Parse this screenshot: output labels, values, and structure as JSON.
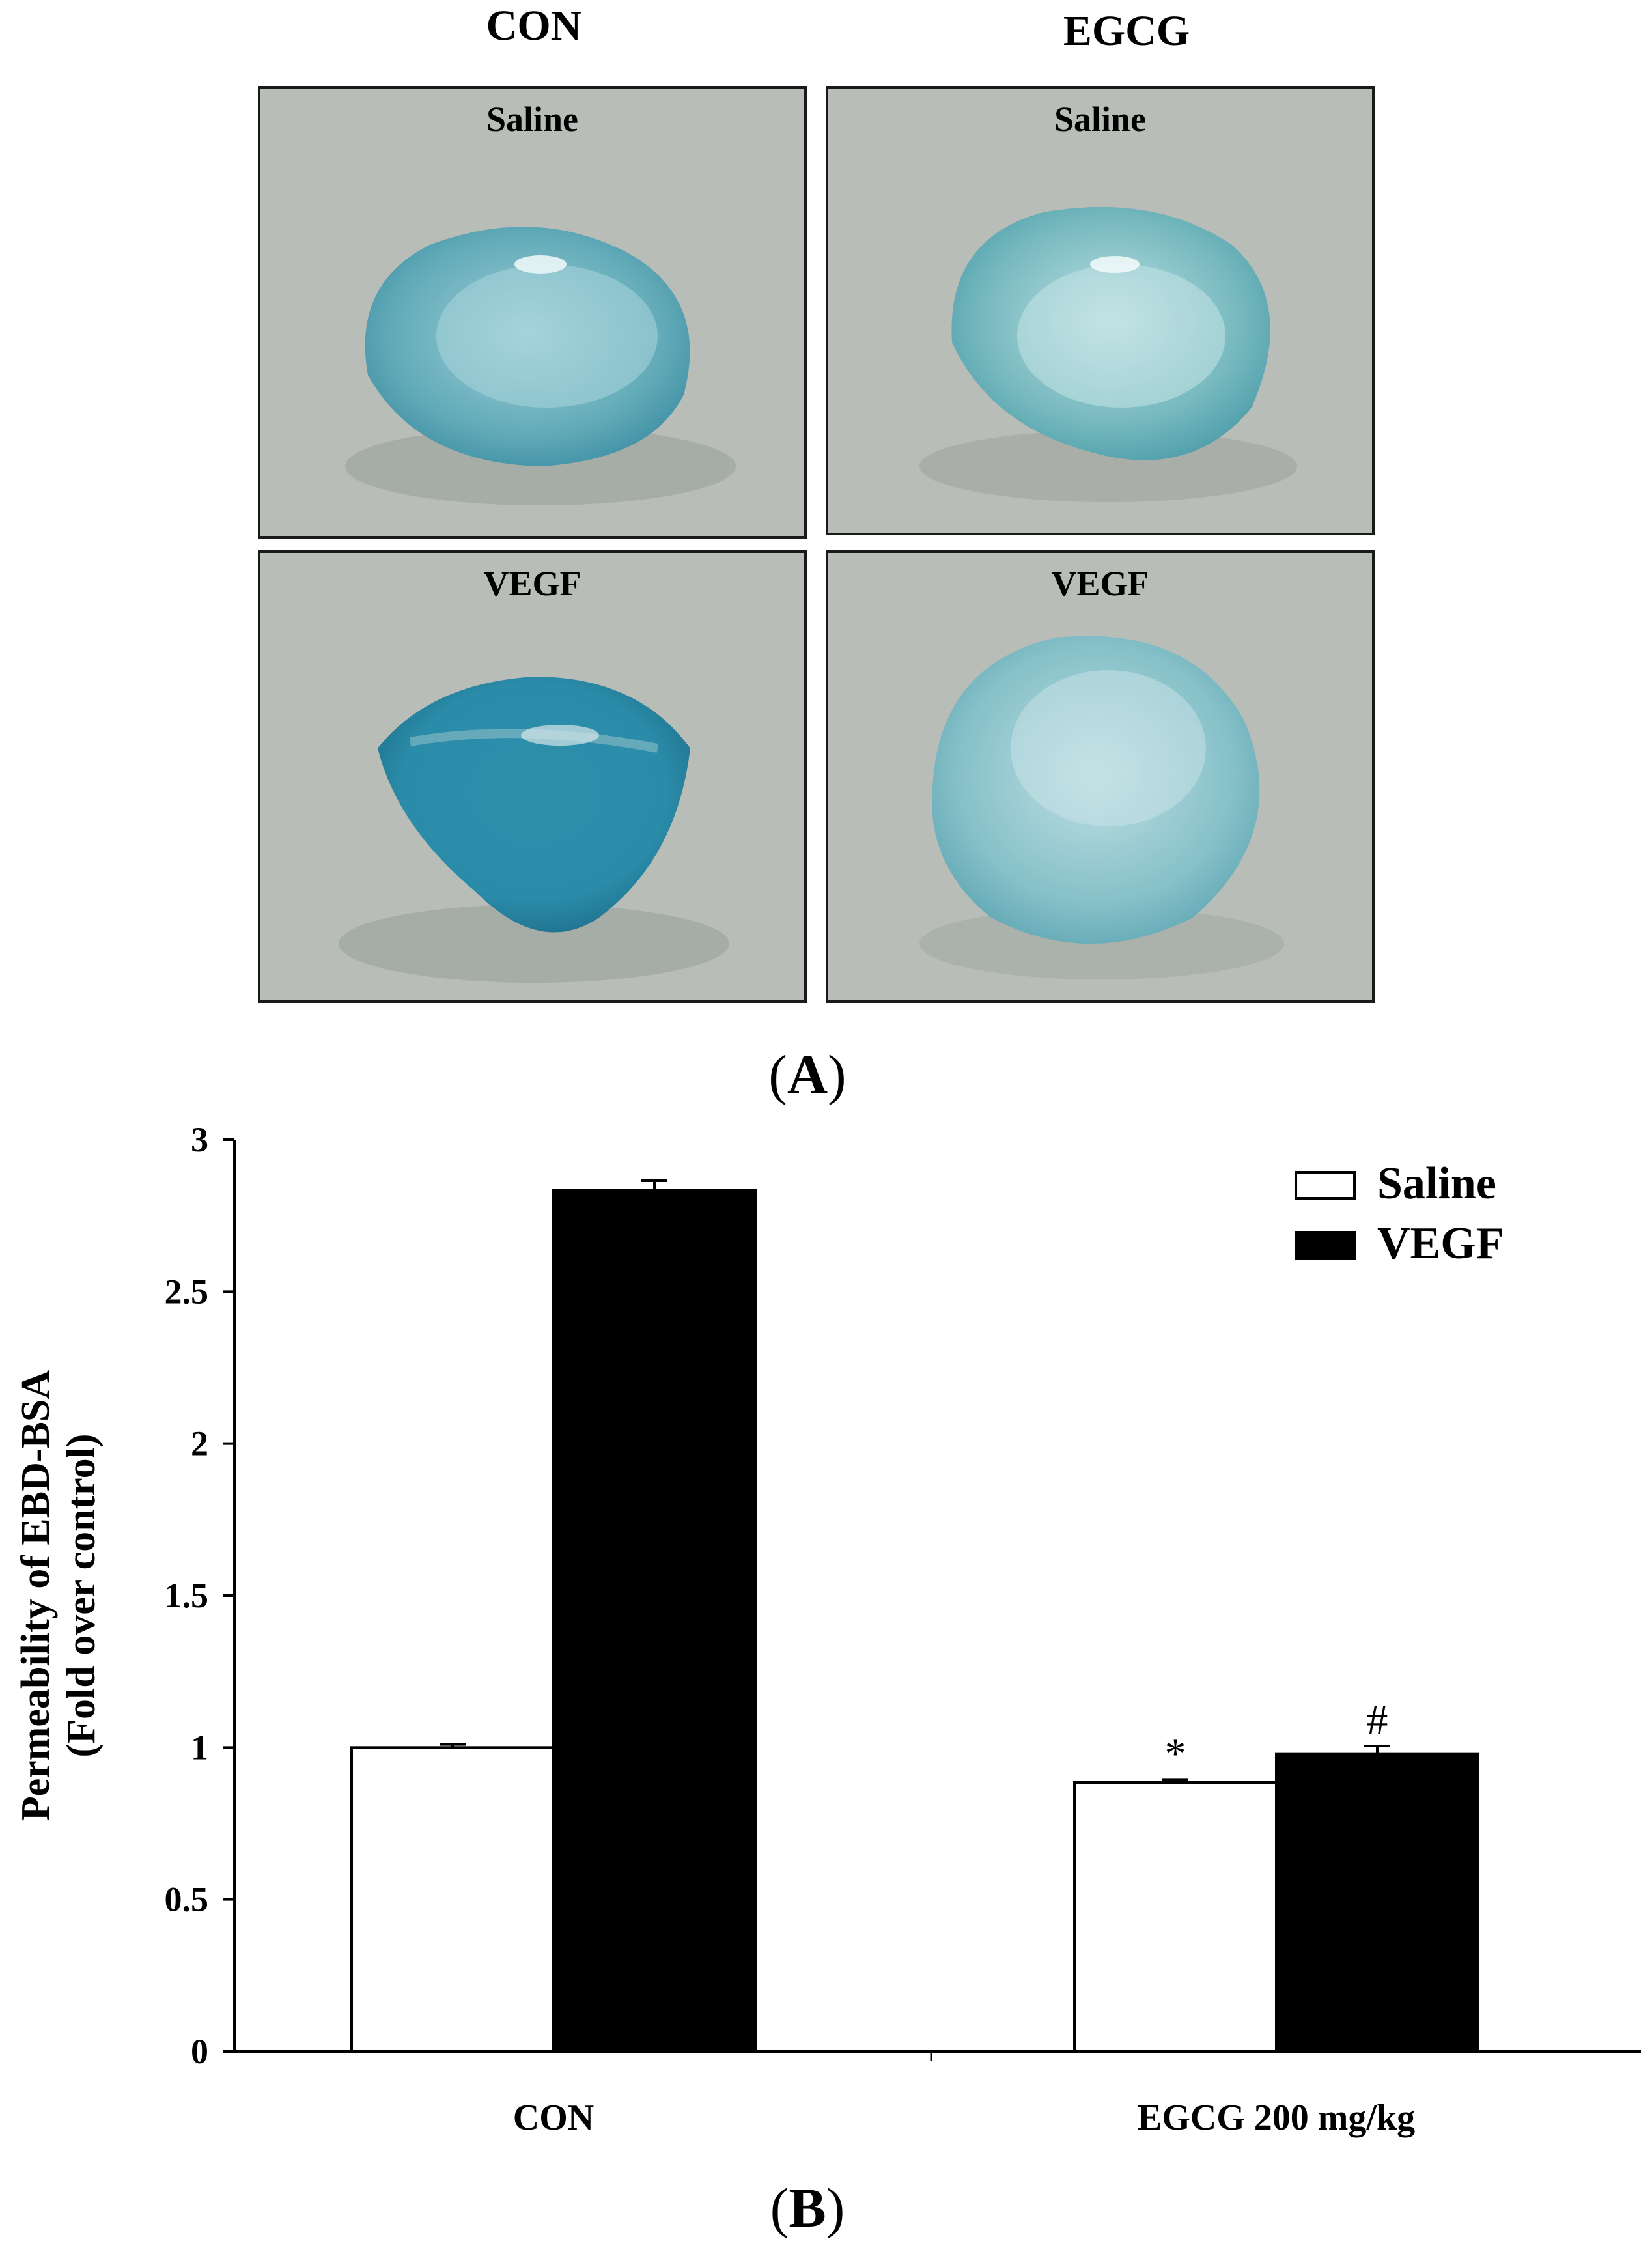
{
  "panel_a": {
    "columns": [
      "CON",
      "EGCG"
    ],
    "photos": [
      {
        "column": "CON",
        "label": "Saline",
        "color": "#62aab8"
      },
      {
        "column": "EGCG",
        "label": "Saline",
        "color": "#73b7bd"
      },
      {
        "column": "CON",
        "label": "VEGF",
        "color": "#2b8ca9"
      },
      {
        "column": "EGCG",
        "label": "VEGF",
        "color": "#86c0c8"
      }
    ],
    "label_open": "(",
    "label_letter": "A",
    "label_close": ")"
  },
  "panel_b": {
    "label_open": "(",
    "label_letter": "B",
    "label_close": ")"
  },
  "chart_data": {
    "type": "bar",
    "categories": [
      "CON",
      "EGCG 200 mg/kg"
    ],
    "series": [
      {
        "name": "Saline",
        "color": "#ffffff",
        "values": [
          1.0,
          0.885
        ],
        "errors": [
          0.01,
          0.01
        ],
        "annotations": [
          "",
          "*"
        ]
      },
      {
        "name": "VEGF",
        "color": "#000000",
        "values": [
          2.835,
          0.98
        ],
        "errors": [
          0.03,
          0.025
        ],
        "annotations": [
          "",
          "#"
        ]
      }
    ],
    "ylabel_line1": "Permeability of  EBD-BSA",
    "ylabel_line2": "(Fold over control)",
    "ylim": [
      0,
      3
    ],
    "yticks": [
      0,
      0.5,
      1,
      1.5,
      2,
      2.5,
      3
    ],
    "ytick_labels": [
      "0",
      "0.5",
      "1",
      "1.5",
      "2",
      "2.5",
      "3"
    ],
    "legend_position": "top-right",
    "grid": false
  }
}
